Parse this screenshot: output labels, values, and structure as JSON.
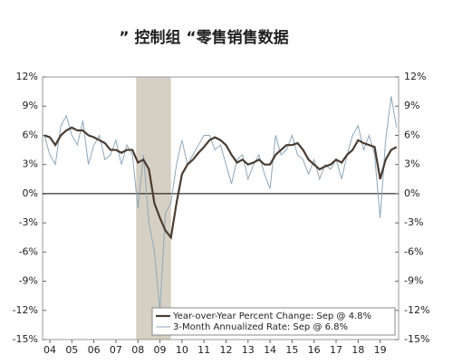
{
  "chart_data": {
    "type": "line",
    "title": "” 控制组 “零售销售数据",
    "x": [
      2003.75,
      2004,
      2004.25,
      2004.5,
      2004.75,
      2005,
      2005.25,
      2005.5,
      2005.75,
      2006,
      2006.25,
      2006.5,
      2006.75,
      2007,
      2007.25,
      2007.5,
      2007.75,
      2008,
      2008.25,
      2008.5,
      2008.75,
      2009,
      2009.25,
      2009.5,
      2009.75,
      2010,
      2010.25,
      2010.5,
      2010.75,
      2011,
      2011.25,
      2011.5,
      2011.75,
      2012,
      2012.25,
      2012.5,
      2012.75,
      2013,
      2013.25,
      2013.5,
      2013.75,
      2014,
      2014.25,
      2014.5,
      2014.75,
      2015,
      2015.25,
      2015.5,
      2015.75,
      2016,
      2016.25,
      2016.5,
      2016.75,
      2017,
      2017.25,
      2017.5,
      2017.75,
      2018,
      2018.25,
      2018.5,
      2018.75,
      2019,
      2019.25,
      2019.5,
      2019.75
    ],
    "series": [
      {
        "name": "3-Month Annualized Rate: Sep @ 6.8%",
        "color": "#8fa7b8",
        "values": [
          6,
          4,
          3,
          7,
          8,
          6,
          5,
          7.5,
          3,
          5,
          6,
          3.5,
          4,
          5.5,
          3,
          5,
          4,
          -1.5,
          4,
          -3,
          -6,
          -12,
          -2,
          -1,
          3,
          5.5,
          3,
          4,
          5,
          6,
          6,
          4.5,
          5,
          3,
          1,
          3.5,
          4,
          1.5,
          3,
          4,
          2,
          0.5,
          6,
          4,
          4.5,
          6,
          4,
          3.5,
          2,
          3.5,
          1.5,
          3,
          2.5,
          3.5,
          1.5,
          4,
          6,
          7,
          4.5,
          6,
          4,
          -2.5,
          5.5,
          10,
          6.8
        ]
      },
      {
        "name": "Year-over-Year Percent Change: Sep @ 4.8%",
        "color": "#4a3c32",
        "values": [
          6,
          5.8,
          5,
          6,
          6.5,
          6.8,
          6.5,
          6.5,
          6,
          5.8,
          5.5,
          5.2,
          4.5,
          4.5,
          4.2,
          4.5,
          4.5,
          3.2,
          3.5,
          2.5,
          -1,
          -2.5,
          -3.8,
          -4.5,
          -1,
          2,
          3,
          3.5,
          4.2,
          4.8,
          5.5,
          5.8,
          5.5,
          5,
          4,
          3.2,
          3.5,
          3,
          3.2,
          3.5,
          3,
          3,
          4,
          4.5,
          5,
          5,
          5.2,
          4.5,
          3.5,
          3,
          2.5,
          2.8,
          3,
          3.5,
          3.2,
          4,
          4.5,
          5.5,
          5.2,
          5,
          4.8,
          1.5,
          3.5,
          4.5,
          4.8
        ]
      }
    ],
    "xlim": [
      2003.67,
      2019.84
    ],
    "xticks": [
      {
        "value": 2004,
        "label": "04"
      },
      {
        "value": 2005,
        "label": "05"
      },
      {
        "value": 2006,
        "label": "06"
      },
      {
        "value": 2007,
        "label": "07"
      },
      {
        "value": 2008,
        "label": "08"
      },
      {
        "value": 2009,
        "label": "09"
      },
      {
        "value": 2010,
        "label": "10"
      },
      {
        "value": 2011,
        "label": "11"
      },
      {
        "value": 2012,
        "label": "12"
      },
      {
        "value": 2013,
        "label": "13"
      },
      {
        "value": 2014,
        "label": "14"
      },
      {
        "value": 2015,
        "label": "15"
      },
      {
        "value": 2016,
        "label": "16"
      },
      {
        "value": 2017,
        "label": "17"
      },
      {
        "value": 2018,
        "label": "18"
      },
      {
        "value": 2019,
        "label": "19"
      }
    ],
    "ylim": [
      -15,
      12
    ],
    "yticks": [
      {
        "value": 12,
        "label": "12%"
      },
      {
        "value": 9,
        "label": "9%"
      },
      {
        "value": 6,
        "label": "6%"
      },
      {
        "value": 3,
        "label": "3%"
      },
      {
        "value": 0,
        "label": "0%"
      },
      {
        "value": -3,
        "label": "-3%"
      },
      {
        "value": -6,
        "label": "-6%"
      },
      {
        "value": -9,
        "label": "-9%"
      },
      {
        "value": -12,
        "label": "-12%"
      },
      {
        "value": -15,
        "label": "-15%"
      }
    ],
    "y2lim": [
      -15,
      12
    ],
    "y2ticks": [
      {
        "value": 12,
        "label": "12%"
      },
      {
        "value": 9,
        "label": "9%"
      },
      {
        "value": 6,
        "label": "6%"
      },
      {
        "value": 3,
        "label": "3%"
      },
      {
        "value": 0,
        "label": "0%"
      },
      {
        "value": -3,
        "label": "-3%"
      },
      {
        "value": -6,
        "label": "-6%"
      },
      {
        "value": -9,
        "label": "-9%"
      },
      {
        "value": -12,
        "label": "-12%"
      },
      {
        "value": -15,
        "label": "-15%"
      }
    ],
    "shaded": [
      2007.92,
      2009.5
    ],
    "shade_color": "#d6d0c4",
    "legend": "lower right"
  }
}
